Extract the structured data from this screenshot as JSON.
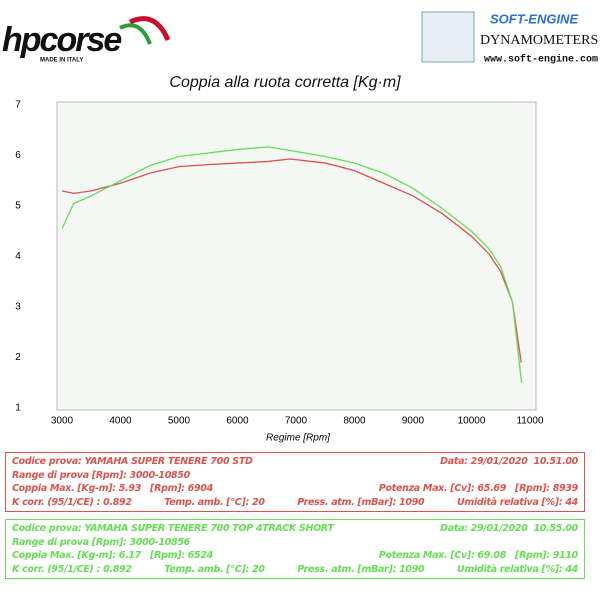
{
  "header": {
    "brand": "hpcorse",
    "brand_tagline": "MADE IN ITALY",
    "partner": "SOFT-ENGINE",
    "partner_tagline": "DYNAMOMETERS",
    "partner_url": "www.soft-engine.com"
  },
  "chart_data": {
    "type": "line",
    "title": "Coppia alla ruota corretta [Kg·m]",
    "x_label": "Regime [Rpm]",
    "xlim": [
      3000,
      11000
    ],
    "xticks": [
      3000,
      4000,
      5000,
      6000,
      7000,
      8000,
      9000,
      10000,
      11000
    ],
    "ylim": [
      1,
      7
    ],
    "yticks": [
      1,
      2,
      3,
      4,
      5,
      6,
      7
    ],
    "series": [
      {
        "name": "YAMAHA SUPER TENERE 700 STD",
        "color": "#d9534f",
        "x": [
          3000,
          3200,
          3500,
          4000,
          4500,
          5000,
          5500,
          6000,
          6500,
          6904,
          7500,
          8000,
          8500,
          9000,
          9500,
          10000,
          10300,
          10500,
          10700,
          10850
        ],
        "values": [
          5.3,
          5.25,
          5.3,
          5.45,
          5.65,
          5.78,
          5.82,
          5.85,
          5.88,
          5.93,
          5.85,
          5.7,
          5.45,
          5.2,
          4.85,
          4.4,
          4.05,
          3.7,
          3.1,
          1.9
        ]
      },
      {
        "name": "YAMAHA SUPER TENERE 700 TOP 4TRACK SHORT",
        "color": "#66dd55",
        "x": [
          3000,
          3200,
          3500,
          4000,
          4500,
          5000,
          5500,
          6000,
          6524,
          7000,
          7500,
          8000,
          8500,
          9000,
          9500,
          10000,
          10300,
          10500,
          10700,
          10856
        ],
        "values": [
          4.55,
          5.05,
          5.2,
          5.5,
          5.8,
          5.98,
          6.05,
          6.12,
          6.17,
          6.08,
          5.98,
          5.85,
          5.65,
          5.35,
          4.95,
          4.5,
          4.15,
          3.8,
          3.1,
          1.5
        ]
      }
    ]
  },
  "info_boxes": [
    {
      "rows": [
        [
          "Codice prova: YAMAHA SUPER TENERE 700 STD",
          "Data: 29/01/2020  10.51.00"
        ],
        [
          "Range di prova [Rpm]: 3000-10850"
        ],
        [
          "Coppia Max. [Kg-m]: 5.93   [Rpm]: 6904",
          "Potenza Max. [Cv]: 65.69   [Rpm]: 8939"
        ],
        [
          "K corr. (95/1/CE) : 0.892",
          "Temp. amb. [°C]: 20",
          "Press. atm. [mBar]: 1090",
          "Umidità relativa [%]: 44"
        ]
      ]
    },
    {
      "rows": [
        [
          "Codice prova: YAMAHA SUPER TENERE 700 TOP 4TRACK SHORT",
          "Data: 29/01/2020  10.55.00"
        ],
        [
          "Range di prova [Rpm]: 3000-10856"
        ],
        [
          "Coppia Max. [Kg-m]: 6.17   [Rpm]: 6524",
          "Potenza Max. [Cv]: 69.08   [Rpm]: 9110"
        ],
        [
          "K corr. (95/1/CE) : 0.892",
          "Temp. amb. [°C]: 20",
          "Press. atm. [mBar]: 1090",
          "Umidità relativa [%]: 44"
        ]
      ]
    }
  ]
}
